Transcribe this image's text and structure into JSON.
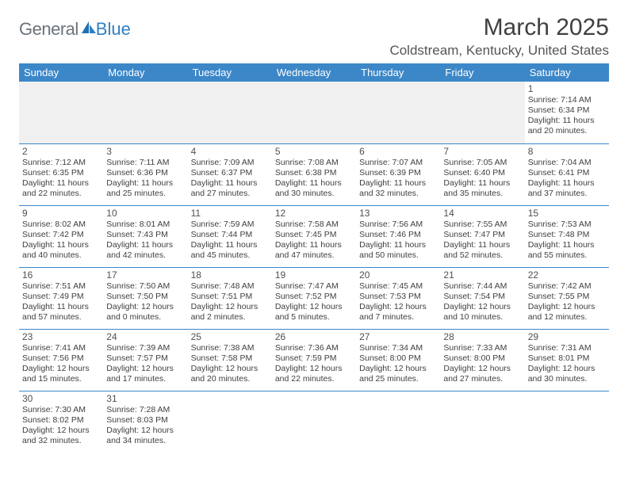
{
  "branding": {
    "logo_text1": "General",
    "logo_text2": "Blue",
    "logo_color1": "#6a737b",
    "logo_color2": "#2f7fc2"
  },
  "header": {
    "title": "March 2025",
    "location": "Coldstream, Kentucky, United States"
  },
  "colors": {
    "header_bg": "#3b87c8",
    "header_text": "#ffffff",
    "grid_line": "#3b87c8",
    "blank_bg": "#f0f0f0",
    "text": "#404040"
  },
  "day_headers": [
    "Sunday",
    "Monday",
    "Tuesday",
    "Wednesday",
    "Thursday",
    "Friday",
    "Saturday"
  ],
  "weeks": [
    [
      null,
      null,
      null,
      null,
      null,
      null,
      {
        "n": "1",
        "sunrise": "Sunrise: 7:14 AM",
        "sunset": "Sunset: 6:34 PM",
        "day": "Daylight: 11 hours and 20 minutes."
      }
    ],
    [
      {
        "n": "2",
        "sunrise": "Sunrise: 7:12 AM",
        "sunset": "Sunset: 6:35 PM",
        "day": "Daylight: 11 hours and 22 minutes."
      },
      {
        "n": "3",
        "sunrise": "Sunrise: 7:11 AM",
        "sunset": "Sunset: 6:36 PM",
        "day": "Daylight: 11 hours and 25 minutes."
      },
      {
        "n": "4",
        "sunrise": "Sunrise: 7:09 AM",
        "sunset": "Sunset: 6:37 PM",
        "day": "Daylight: 11 hours and 27 minutes."
      },
      {
        "n": "5",
        "sunrise": "Sunrise: 7:08 AM",
        "sunset": "Sunset: 6:38 PM",
        "day": "Daylight: 11 hours and 30 minutes."
      },
      {
        "n": "6",
        "sunrise": "Sunrise: 7:07 AM",
        "sunset": "Sunset: 6:39 PM",
        "day": "Daylight: 11 hours and 32 minutes."
      },
      {
        "n": "7",
        "sunrise": "Sunrise: 7:05 AM",
        "sunset": "Sunset: 6:40 PM",
        "day": "Daylight: 11 hours and 35 minutes."
      },
      {
        "n": "8",
        "sunrise": "Sunrise: 7:04 AM",
        "sunset": "Sunset: 6:41 PM",
        "day": "Daylight: 11 hours and 37 minutes."
      }
    ],
    [
      {
        "n": "9",
        "sunrise": "Sunrise: 8:02 AM",
        "sunset": "Sunset: 7:42 PM",
        "day": "Daylight: 11 hours and 40 minutes."
      },
      {
        "n": "10",
        "sunrise": "Sunrise: 8:01 AM",
        "sunset": "Sunset: 7:43 PM",
        "day": "Daylight: 11 hours and 42 minutes."
      },
      {
        "n": "11",
        "sunrise": "Sunrise: 7:59 AM",
        "sunset": "Sunset: 7:44 PM",
        "day": "Daylight: 11 hours and 45 minutes."
      },
      {
        "n": "12",
        "sunrise": "Sunrise: 7:58 AM",
        "sunset": "Sunset: 7:45 PM",
        "day": "Daylight: 11 hours and 47 minutes."
      },
      {
        "n": "13",
        "sunrise": "Sunrise: 7:56 AM",
        "sunset": "Sunset: 7:46 PM",
        "day": "Daylight: 11 hours and 50 minutes."
      },
      {
        "n": "14",
        "sunrise": "Sunrise: 7:55 AM",
        "sunset": "Sunset: 7:47 PM",
        "day": "Daylight: 11 hours and 52 minutes."
      },
      {
        "n": "15",
        "sunrise": "Sunrise: 7:53 AM",
        "sunset": "Sunset: 7:48 PM",
        "day": "Daylight: 11 hours and 55 minutes."
      }
    ],
    [
      {
        "n": "16",
        "sunrise": "Sunrise: 7:51 AM",
        "sunset": "Sunset: 7:49 PM",
        "day": "Daylight: 11 hours and 57 minutes."
      },
      {
        "n": "17",
        "sunrise": "Sunrise: 7:50 AM",
        "sunset": "Sunset: 7:50 PM",
        "day": "Daylight: 12 hours and 0 minutes."
      },
      {
        "n": "18",
        "sunrise": "Sunrise: 7:48 AM",
        "sunset": "Sunset: 7:51 PM",
        "day": "Daylight: 12 hours and 2 minutes."
      },
      {
        "n": "19",
        "sunrise": "Sunrise: 7:47 AM",
        "sunset": "Sunset: 7:52 PM",
        "day": "Daylight: 12 hours and 5 minutes."
      },
      {
        "n": "20",
        "sunrise": "Sunrise: 7:45 AM",
        "sunset": "Sunset: 7:53 PM",
        "day": "Daylight: 12 hours and 7 minutes."
      },
      {
        "n": "21",
        "sunrise": "Sunrise: 7:44 AM",
        "sunset": "Sunset: 7:54 PM",
        "day": "Daylight: 12 hours and 10 minutes."
      },
      {
        "n": "22",
        "sunrise": "Sunrise: 7:42 AM",
        "sunset": "Sunset: 7:55 PM",
        "day": "Daylight: 12 hours and 12 minutes."
      }
    ],
    [
      {
        "n": "23",
        "sunrise": "Sunrise: 7:41 AM",
        "sunset": "Sunset: 7:56 PM",
        "day": "Daylight: 12 hours and 15 minutes."
      },
      {
        "n": "24",
        "sunrise": "Sunrise: 7:39 AM",
        "sunset": "Sunset: 7:57 PM",
        "day": "Daylight: 12 hours and 17 minutes."
      },
      {
        "n": "25",
        "sunrise": "Sunrise: 7:38 AM",
        "sunset": "Sunset: 7:58 PM",
        "day": "Daylight: 12 hours and 20 minutes."
      },
      {
        "n": "26",
        "sunrise": "Sunrise: 7:36 AM",
        "sunset": "Sunset: 7:59 PM",
        "day": "Daylight: 12 hours and 22 minutes."
      },
      {
        "n": "27",
        "sunrise": "Sunrise: 7:34 AM",
        "sunset": "Sunset: 8:00 PM",
        "day": "Daylight: 12 hours and 25 minutes."
      },
      {
        "n": "28",
        "sunrise": "Sunrise: 7:33 AM",
        "sunset": "Sunset: 8:00 PM",
        "day": "Daylight: 12 hours and 27 minutes."
      },
      {
        "n": "29",
        "sunrise": "Sunrise: 7:31 AM",
        "sunset": "Sunset: 8:01 PM",
        "day": "Daylight: 12 hours and 30 minutes."
      }
    ],
    [
      {
        "n": "30",
        "sunrise": "Sunrise: 7:30 AM",
        "sunset": "Sunset: 8:02 PM",
        "day": "Daylight: 12 hours and 32 minutes."
      },
      {
        "n": "31",
        "sunrise": "Sunrise: 7:28 AM",
        "sunset": "Sunset: 8:03 PM",
        "day": "Daylight: 12 hours and 34 minutes."
      },
      null,
      null,
      null,
      null,
      null
    ]
  ]
}
